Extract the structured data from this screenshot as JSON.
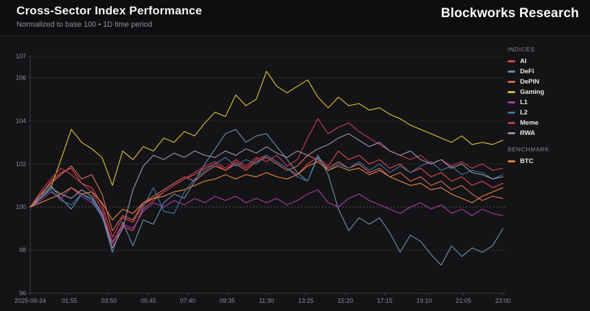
{
  "header": {
    "title": "Cross-Sector Index Performance",
    "subtitle": "Normalized to base 100 • 1D time period",
    "brand": "Blockworks Research"
  },
  "legend": {
    "indices_label": "INDICES",
    "benchmark_label": "BENCHMARK"
  },
  "colors": {
    "background": "#0e0e10",
    "panel": "#141417",
    "grid": "#232327",
    "baseline_dashed": "#5a5b61",
    "axis": "#3f4046",
    "tick_text": "#8b8e96"
  },
  "chart_data": {
    "type": "line",
    "title": "Cross-Sector Index Performance",
    "subtitle": "Normalized to base 100 • 1D time period",
    "xlabel": "",
    "ylabel": "",
    "ylim": [
      96,
      107
    ],
    "y_ticks": [
      96,
      98,
      100,
      102,
      104,
      106,
      107
    ],
    "baseline_value": 100,
    "grid": "horizontal",
    "legend_position": "right",
    "x_tick_labels": [
      "2025-09-24",
      "01:55",
      "03:50",
      "05:45",
      "07:40",
      "09:35",
      "11:30",
      "13:25",
      "15:20",
      "17:15",
      "19:10",
      "21:05",
      "23:00"
    ],
    "x_start_hour": 0,
    "x_end_hour": 23,
    "point_interval_hours": 0.5,
    "series": [
      {
        "name": "AI",
        "group": "indices",
        "color": "#d9494f",
        "values": [
          100,
          100.5,
          101.2,
          101.6,
          101.8,
          101.1,
          100.9,
          100.1,
          98.6,
          99.5,
          99.3,
          100.1,
          100.4,
          100.7,
          101,
          101.3,
          101.5,
          101.8,
          102,
          101.7,
          102.1,
          101.8,
          102.2,
          102.4,
          102.1,
          101.8,
          101.5,
          102,
          102.3,
          101.9,
          102.6,
          102.2,
          102.4,
          102,
          102.2,
          101.8,
          102,
          101.6,
          101.8,
          101.4,
          101.6,
          101.2,
          101.4,
          101,
          101.2,
          100.9,
          101.1
        ]
      },
      {
        "name": "DeFi",
        "group": "indices",
        "color": "#6b8cab",
        "values": [
          100,
          100.5,
          101,
          100.4,
          99.9,
          100.6,
          100.4,
          99.6,
          97.9,
          99.3,
          98.2,
          99.4,
          99.2,
          100.2,
          100.6,
          100.4,
          101.2,
          102,
          102.7,
          103.4,
          103.6,
          103,
          103.3,
          103.4,
          102.8,
          102.2,
          101.6,
          101.2,
          102.4,
          101.5,
          99.9,
          98.9,
          99.5,
          99.2,
          99.5,
          98.8,
          97.9,
          98.7,
          98.4,
          97.8,
          97.3,
          98.2,
          97.7,
          98.1,
          97.9,
          98.2,
          99
        ]
      },
      {
        "name": "DePIN",
        "group": "indices",
        "color": "#d96a55",
        "values": [
          100,
          100.6,
          101.1,
          101.5,
          101.9,
          101.3,
          101.5,
          100.6,
          98.9,
          99.6,
          99.4,
          100.2,
          100.5,
          100.8,
          101.1,
          101.4,
          101.2,
          101.6,
          101.9,
          101.7,
          102,
          101.7,
          102.1,
          102.3,
          102,
          101.7,
          101.9,
          102.4,
          102.2,
          101.8,
          102.1,
          101.8,
          102,
          101.6,
          101.8,
          101.4,
          101.6,
          101.2,
          101.4,
          101,
          101.2,
          100.8,
          101,
          100.6,
          100.3,
          100.5,
          100.4
        ]
      },
      {
        "name": "Gaming",
        "group": "indices",
        "color": "#d9bc3c",
        "values": [
          100,
          100.4,
          100.9,
          102.2,
          103.6,
          103,
          102.7,
          102.3,
          101,
          102.6,
          102.2,
          102.8,
          102.6,
          103.2,
          103,
          103.5,
          103.3,
          103.9,
          104.4,
          104.2,
          105.2,
          104.7,
          105,
          106.3,
          105.6,
          105.3,
          105.6,
          105.9,
          105.1,
          104.6,
          105.1,
          104.7,
          104.8,
          104.5,
          104.6,
          104.3,
          104.1,
          103.8,
          103.6,
          103.4,
          103.2,
          103,
          103.3,
          102.9,
          103,
          102.9,
          103.1
        ]
      },
      {
        "name": "L1",
        "group": "indices",
        "color": "#a83a9e",
        "values": [
          100,
          100.3,
          100.7,
          100.4,
          100.9,
          100.5,
          100.2,
          99.6,
          98.4,
          99.2,
          99,
          99.8,
          100.2,
          100,
          100.3,
          100.1,
          100.4,
          100.2,
          100.5,
          100.3,
          100.5,
          100.2,
          100.4,
          100.2,
          100.4,
          100.1,
          100.3,
          100.6,
          100.8,
          100.2,
          100,
          100.4,
          100.6,
          100.3,
          100.1,
          99.9,
          99.7,
          100,
          100.2,
          99.9,
          100.1,
          99.7,
          99.9,
          99.6,
          99.9,
          99.7,
          99.6
        ]
      },
      {
        "name": "L2",
        "group": "indices",
        "color": "#3d74a8",
        "values": [
          100,
          100.4,
          100.8,
          100.3,
          100.1,
          100.6,
          100.3,
          99.5,
          98.3,
          99.1,
          98.9,
          100,
          100.9,
          99.8,
          99.7,
          100.7,
          101.3,
          101.7,
          102,
          102.3,
          101.9,
          102.2,
          102,
          102.4,
          102.1,
          101.8,
          101.4,
          101.2,
          102.3,
          101.7,
          102,
          101.8,
          102.1,
          101.7,
          102,
          101.6,
          101.9,
          101.6,
          101.9,
          102.1,
          101.7,
          101.9,
          101.5,
          101.7,
          101.6,
          101.3,
          101.5
        ]
      },
      {
        "name": "Meme",
        "group": "indices",
        "color": "#c23b55",
        "values": [
          100,
          100.7,
          101.3,
          101.8,
          101.5,
          101.1,
          100.7,
          99.9,
          98.3,
          99.1,
          98.9,
          99.9,
          100.3,
          100.7,
          101,
          101.3,
          101.6,
          101.9,
          102.1,
          101.8,
          102.2,
          101.9,
          102.3,
          102.1,
          102.4,
          101.9,
          102.2,
          103.2,
          104.1,
          103.4,
          103.7,
          103.9,
          103.5,
          103.2,
          102.9,
          102.6,
          102.4,
          102.2,
          102.4,
          102,
          102.2,
          101.9,
          102.1,
          101.8,
          102,
          101.7,
          101.8
        ]
      },
      {
        "name": "RWA",
        "group": "indices",
        "color": "#9e90a8",
        "values": [
          100,
          100.4,
          100.9,
          100.6,
          100.4,
          100.8,
          100.5,
          99.7,
          98.1,
          99,
          100.8,
          101.9,
          102.4,
          102.2,
          102.5,
          102.3,
          102.6,
          102.4,
          102.3,
          102.6,
          102.4,
          102.7,
          102.5,
          102.8,
          102.5,
          102.3,
          102.6,
          102.4,
          102.7,
          102.9,
          103.2,
          103.4,
          103.1,
          102.8,
          103,
          102.6,
          102.4,
          102.6,
          102.2,
          102,
          102.2,
          101.8,
          102,
          101.6,
          101.5,
          101.3,
          101.4
        ]
      },
      {
        "name": "BTC",
        "group": "benchmark",
        "color": "#e0833c",
        "values": [
          100,
          100.2,
          100.4,
          100.6,
          100.9,
          100.6,
          100.7,
          100.2,
          99.4,
          99.9,
          99.7,
          100.2,
          100.4,
          100.5,
          100.7,
          100.8,
          101,
          101.2,
          101.3,
          101.5,
          101.3,
          101.5,
          101.4,
          101.6,
          101.4,
          101.3,
          101.5,
          101.9,
          102.1,
          101.7,
          101.9,
          101.7,
          101.8,
          101.5,
          101.7,
          101.4,
          101.2,
          101,
          101.1,
          100.8,
          100.9,
          100.6,
          100.4,
          100.2,
          100.5,
          100.7,
          100.9
        ]
      }
    ]
  }
}
